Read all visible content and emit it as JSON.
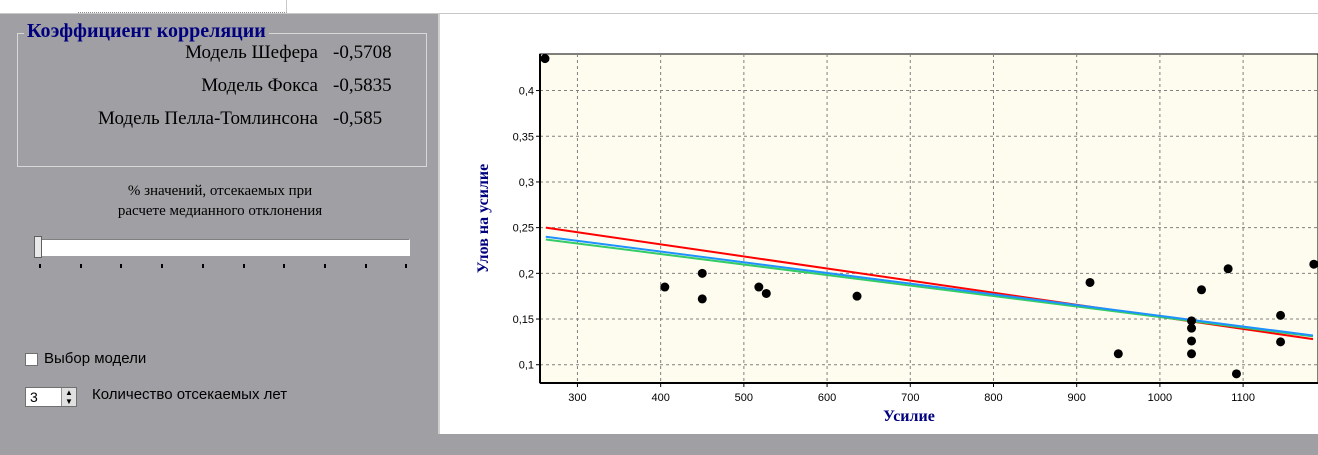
{
  "correlation": {
    "title": "Коэффициент корреляции",
    "rows": [
      {
        "name": "Модель Шефера",
        "value": "-0,5708"
      },
      {
        "name": "Модель Фокса",
        "value": "-0,5835"
      },
      {
        "name": "Модель Пелла-Томлинсона",
        "value": "-0,585"
      }
    ]
  },
  "slider": {
    "label_line1": "% значений, отсекаемых при",
    "label_line2": "расчете медианного отклонения",
    "value": 0
  },
  "model_select": {
    "label": "Выбор модели",
    "checked": false
  },
  "cut_years": {
    "label": "Количество отсекаемых лет",
    "value": "3"
  },
  "colors": {
    "title_blue": "#00007f",
    "plot_bg": "#fefcee",
    "red": "#ff0000",
    "blue": "#1e90ff",
    "green": "#33cc66"
  },
  "chart_data": {
    "type": "scatter",
    "xlabel": "Усилие",
    "ylabel": "Улов на усилие",
    "xlim": [
      255,
      1190
    ],
    "ylim": [
      0.08,
      0.44
    ],
    "xticks": [
      300,
      400,
      500,
      600,
      700,
      800,
      900,
      1000,
      1100
    ],
    "yticks": [
      0.1,
      0.15,
      0.2,
      0.25,
      0.3,
      0.35,
      0.4
    ],
    "ytick_labels": [
      "0,1",
      "0,15",
      "0,2",
      "0,25",
      "0,3",
      "0,35",
      "0,4"
    ],
    "grid": true,
    "points": [
      {
        "x": 261,
        "y": 0.435
      },
      {
        "x": 405,
        "y": 0.185
      },
      {
        "x": 450,
        "y": 0.2
      },
      {
        "x": 450,
        "y": 0.172
      },
      {
        "x": 518,
        "y": 0.185
      },
      {
        "x": 527,
        "y": 0.178
      },
      {
        "x": 636,
        "y": 0.175
      },
      {
        "x": 916,
        "y": 0.19
      },
      {
        "x": 950,
        "y": 0.112
      },
      {
        "x": 1038,
        "y": 0.148
      },
      {
        "x": 1038,
        "y": 0.14
      },
      {
        "x": 1038,
        "y": 0.126
      },
      {
        "x": 1038,
        "y": 0.112
      },
      {
        "x": 1050,
        "y": 0.182
      },
      {
        "x": 1082,
        "y": 0.205
      },
      {
        "x": 1092,
        "y": 0.09
      },
      {
        "x": 1145,
        "y": 0.154
      },
      {
        "x": 1145,
        "y": 0.125
      },
      {
        "x": 1185,
        "y": 0.21
      }
    ],
    "lines": [
      {
        "color": "#ff0000",
        "x": [
          262,
          1184
        ],
        "y": [
          0.25,
          0.128
        ]
      },
      {
        "color": "#33cc66",
        "x": [
          262,
          1184
        ],
        "y": [
          0.237,
          0.131
        ]
      },
      {
        "color": "#1e90ff",
        "x": [
          262,
          1184
        ],
        "y": [
          0.24,
          0.132
        ]
      }
    ]
  }
}
